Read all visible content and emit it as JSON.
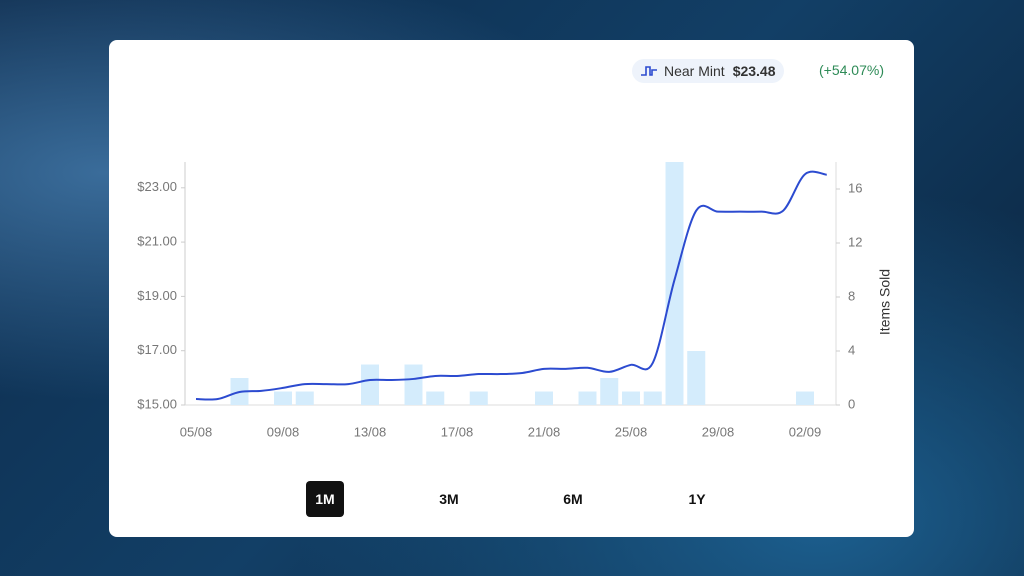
{
  "chip": {
    "price": "$23.48",
    "change": "(+54.07%)"
  },
  "chart_data": {
    "type": "line",
    "categories": [
      "05/08",
      null,
      null,
      null,
      "09/08",
      null,
      null,
      null,
      "13/08",
      null,
      null,
      null,
      "17/08",
      null,
      null,
      null,
      "21/08",
      null,
      null,
      null,
      "25/08",
      null,
      null,
      null,
      "29/08",
      null,
      null,
      null,
      "02/09",
      null
    ],
    "series": [
      {
        "name": "Near Mint",
        "color": "#2c4bd0",
        "values": [
          15.22,
          15.22,
          15.48,
          15.52,
          15.63,
          15.77,
          15.77,
          15.77,
          15.92,
          15.92,
          15.96,
          16.07,
          16.07,
          16.14,
          16.14,
          16.18,
          16.33,
          16.33,
          16.37,
          16.22,
          16.48,
          16.55,
          19.61,
          22.16,
          22.12,
          22.12,
          22.12,
          22.16,
          23.5,
          23.48
        ]
      },
      {
        "type": "bar",
        "axis": "y2",
        "color": "#d4ecfc",
        "values": [
          0,
          0,
          2,
          0,
          1,
          1,
          0,
          0,
          3,
          0,
          3,
          1,
          0,
          1,
          0,
          0,
          1,
          0,
          1,
          2,
          1,
          1,
          18,
          4,
          0,
          0,
          0,
          0,
          1,
          0
        ]
      }
    ],
    "ylim": [
      15,
      23.95
    ],
    "yticks": [
      {
        "value": 15,
        "label": "$15.00"
      },
      {
        "value": 17,
        "label": "$17.00"
      },
      {
        "value": 19,
        "label": "$19.00"
      },
      {
        "value": 21,
        "label": "$21.00"
      },
      {
        "value": 23,
        "label": "$23.00"
      }
    ],
    "y2lim": [
      0,
      18
    ],
    "y2ticks": [
      0,
      4,
      8,
      12,
      16
    ],
    "y2label": "Items Sold",
    "grid": false
  },
  "range_buttons": [
    {
      "label": "1M",
      "selected": true
    },
    {
      "label": "3M",
      "selected": false
    },
    {
      "label": "6M",
      "selected": false
    },
    {
      "label": "1Y",
      "selected": false
    }
  ]
}
